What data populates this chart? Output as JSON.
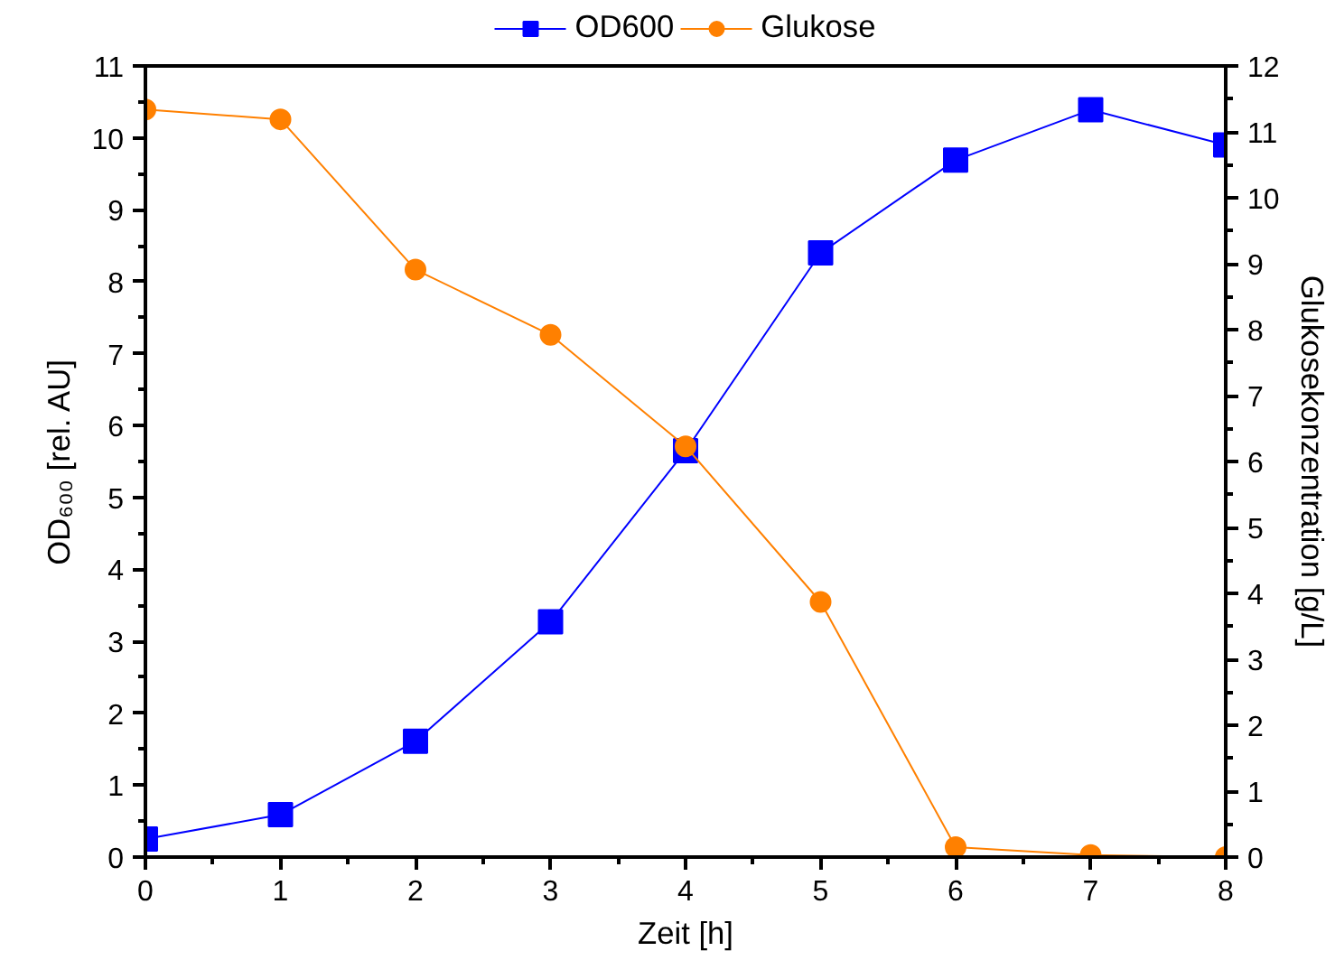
{
  "chart_data": {
    "type": "line",
    "xlabel": "Zeit [h]",
    "ylabel": "OD₆₀₀ [rel. AU]",
    "y2label": "Glukosekonzentration [g/L]",
    "x": [
      0,
      1,
      2,
      3,
      4,
      5,
      6,
      7,
      8
    ],
    "series": [
      {
        "name": "OD600",
        "color": "#0000ff",
        "marker": "square",
        "values": [
          0.25,
          0.59,
          1.61,
          3.27,
          5.65,
          8.4,
          9.69,
          10.39,
          9.9
        ]
      },
      {
        "name": "Glukose",
        "color": "#ff8000",
        "marker": "circle",
        "axis": "y2",
        "values": [
          11.34,
          11.19,
          8.91,
          7.92,
          6.23,
          3.87,
          0.15,
          0.03,
          0.0
        ]
      }
    ],
    "xlim": [
      0,
      8
    ],
    "xticks": [
      0,
      1,
      2,
      3,
      4,
      5,
      6,
      7,
      8
    ],
    "ylim": [
      0,
      11
    ],
    "yticks": [
      0,
      1,
      2,
      3,
      4,
      5,
      6,
      7,
      8,
      9,
      10,
      11
    ],
    "y2lim": [
      0,
      12
    ],
    "y2ticks": [
      0,
      1,
      2,
      3,
      4,
      5,
      6,
      7,
      8,
      9,
      10,
      11,
      12
    ],
    "legend": "top",
    "grid": false,
    "line_style": "solid"
  }
}
